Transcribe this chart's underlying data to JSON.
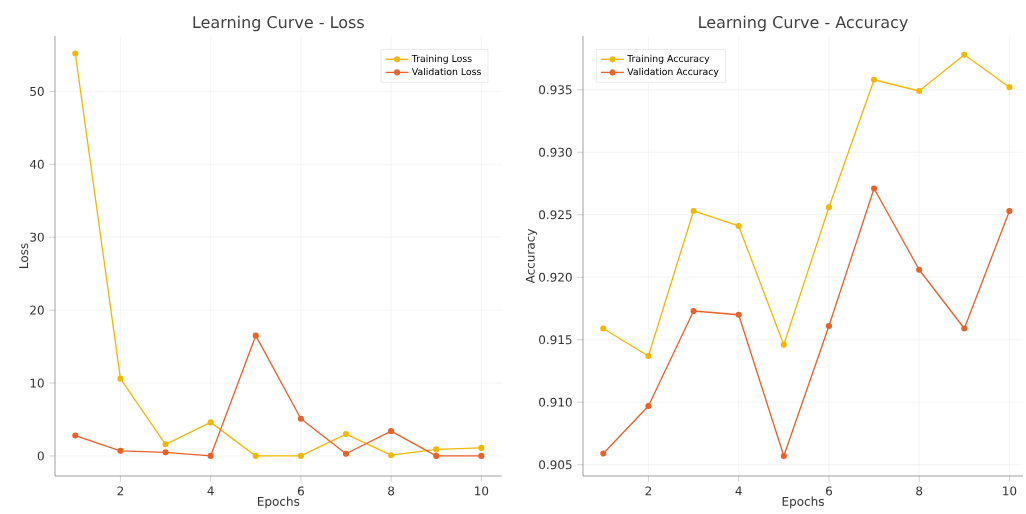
{
  "chart_data": [
    {
      "type": "line",
      "title": "Learning Curve - Loss",
      "xlabel": "Epochs",
      "ylabel": "Loss",
      "x": [
        1,
        2,
        3,
        4,
        5,
        6,
        7,
        8,
        9,
        10
      ],
      "series": [
        {
          "name": "Training Loss",
          "color": "#f2b705",
          "values": [
            55.2,
            10.6,
            1.6,
            4.6,
            0.0,
            0.0,
            3.0,
            0.1,
            0.9,
            1.1
          ]
        },
        {
          "name": "Validation Loss",
          "color": "#e8622a",
          "values": [
            2.8,
            0.7,
            0.5,
            0.0,
            16.5,
            5.1,
            0.3,
            3.4,
            0.0,
            0.0
          ]
        }
      ],
      "xlim": [
        0.55,
        10.45
      ],
      "ylim": [
        -2.75,
        57.6
      ],
      "xticks": [
        2,
        4,
        6,
        8,
        10
      ],
      "yticks": [
        0,
        10,
        20,
        30,
        40,
        50
      ],
      "grid": true,
      "legend": "top right",
      "marker": "circle",
      "line_style": "solid"
    },
    {
      "type": "line",
      "title": "Learning Curve - Accuracy",
      "xlabel": "Epochs",
      "ylabel": "Accuracy",
      "x": [
        1,
        2,
        3,
        4,
        5,
        6,
        7,
        8,
        9,
        10
      ],
      "series": [
        {
          "name": "Training Accuracy",
          "color": "#f2b705",
          "values": [
            0.9159,
            0.9137,
            0.9253,
            0.9241,
            0.9146,
            0.9256,
            0.9358,
            0.9349,
            0.9378,
            0.9352
          ]
        },
        {
          "name": "Validation Accuracy",
          "color": "#e8622a",
          "values": [
            0.9059,
            0.9097,
            0.9173,
            0.917,
            0.9057,
            0.9161,
            0.9271,
            0.9206,
            0.9159,
            0.9253
          ]
        }
      ],
      "xlim": [
        0.55,
        10.3
      ],
      "ylim": [
        0.9041,
        0.9393
      ],
      "xticks": [
        2,
        4,
        6,
        8,
        10
      ],
      "yticks": [
        {
          "value": 0.905,
          "label": "0.905"
        },
        {
          "value": 0.91,
          "label": "0.910"
        },
        {
          "value": 0.915,
          "label": "0.915"
        },
        {
          "value": 0.92,
          "label": "0.920"
        },
        {
          "value": 0.925,
          "label": "0.925"
        },
        {
          "value": 0.93,
          "label": "0.930"
        },
        {
          "value": 0.935,
          "label": "0.935"
        }
      ],
      "grid": true,
      "legend": "top left",
      "marker": "circle",
      "line_style": "solid"
    }
  ]
}
